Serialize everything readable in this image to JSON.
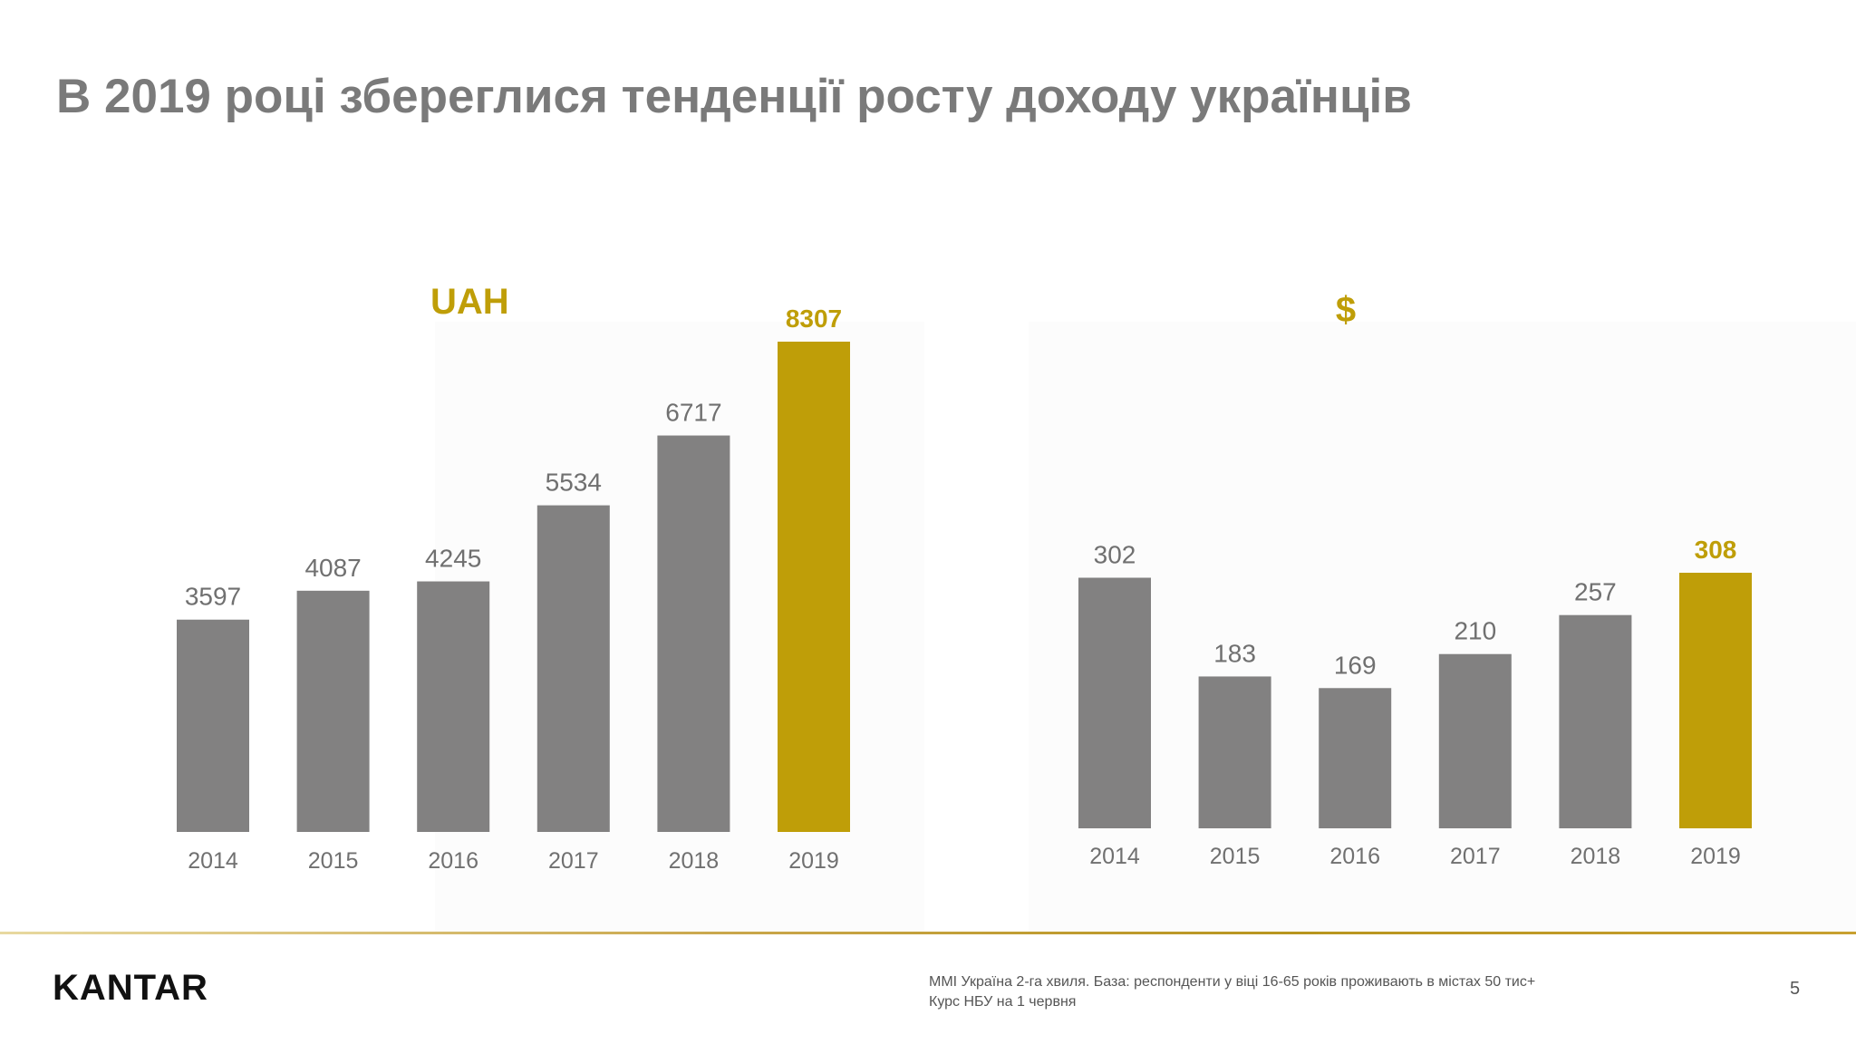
{
  "title": "В 2019 році збереглися тенденції росту доходу українців",
  "colors": {
    "gray": "#828181",
    "gold": "#BF9E08",
    "label_gray": "#707070",
    "axis_gray": "#707070"
  },
  "chart_data": [
    {
      "type": "bar",
      "title": "UAH",
      "categories": [
        "2014",
        "2015",
        "2016",
        "2017",
        "2018",
        "2019"
      ],
      "values": [
        3597,
        4087,
        4245,
        5534,
        6717,
        8307
      ],
      "highlight_index": 5,
      "ylim": [
        0,
        9000
      ]
    },
    {
      "type": "bar",
      "title": "$",
      "categories": [
        "2014",
        "2015",
        "2016",
        "2017",
        "2018",
        "2019"
      ],
      "values": [
        302,
        183,
        169,
        210,
        257,
        308
      ],
      "highlight_index": 5,
      "ylim": [
        0,
        320
      ]
    }
  ],
  "footer": {
    "logo": "KANTAR",
    "note_line1": "MMI Україна 2-га хвиля. База: респонденти у віці 16-65 років проживають в містах 50 тис+",
    "note_line2": "Курс НБУ на 1 червня",
    "page_number": "5"
  }
}
